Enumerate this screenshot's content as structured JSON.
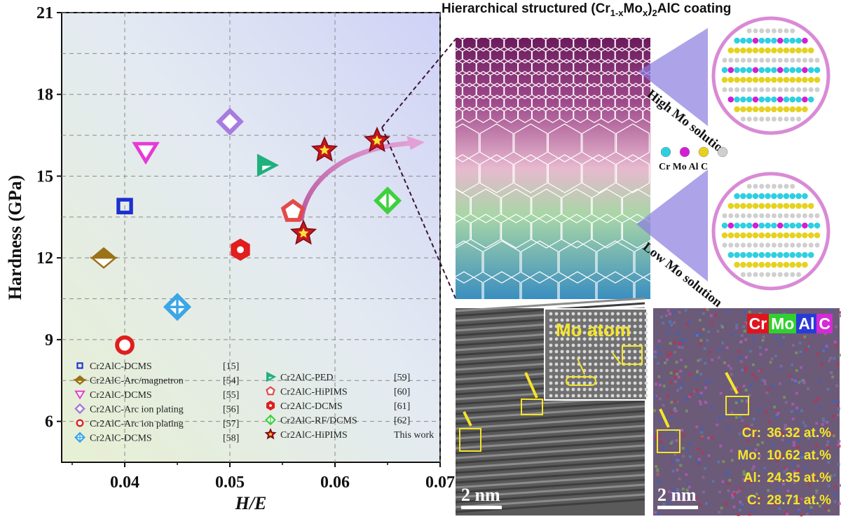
{
  "chart_data": {
    "type": "scatter",
    "xlabel": "H/E",
    "ylabel": "Hardness (GPa)",
    "xlim": [
      0.034,
      0.07
    ],
    "ylim": [
      4.5,
      21
    ],
    "x_ticks": [
      "0.04",
      "0.05",
      "0.06",
      "0.07"
    ],
    "y_ticks": [
      "6",
      "9",
      "12",
      "15",
      "18",
      "21"
    ],
    "grid": true,
    "legend_position": "bottom",
    "series": [
      {
        "name": "Cr2AlC-DCMS",
        "ref": "[15]",
        "marker": "square",
        "color": "#1b2fd1",
        "points": [
          [
            0.04,
            13.9
          ]
        ]
      },
      {
        "name": "Cr2AlC-Arc/magnetron",
        "ref": "[54]",
        "marker": "half-diamond",
        "color": "#9a7218",
        "points": [
          [
            0.038,
            12.0
          ]
        ]
      },
      {
        "name": "Cr2AlC-DCMS",
        "ref": "[55]",
        "marker": "triangle-down",
        "color": "#e63ad6",
        "points": [
          [
            0.042,
            15.9
          ]
        ]
      },
      {
        "name": "Cr2AlC-Arc  ion plating",
        "ref": "[56]",
        "marker": "diamond",
        "color": "#a77be0",
        "points": [
          [
            0.05,
            17.0
          ]
        ]
      },
      {
        "name": "Cr2AlC-Arc  ion plating",
        "ref": "[57]",
        "marker": "circle",
        "color": "#e01e1e",
        "points": [
          [
            0.04,
            8.8
          ]
        ]
      },
      {
        "name": "Cr2AlC-DCMS",
        "ref": "[58]",
        "marker": "crossed-diamond",
        "color": "#3aa6e6",
        "points": [
          [
            0.045,
            10.2
          ]
        ]
      },
      {
        "name": "Cr2AlC-PED",
        "ref": "[59]",
        "marker": "triangle-right",
        "color": "#1fb07e",
        "points": [
          [
            0.0535,
            15.4
          ]
        ]
      },
      {
        "name": "Cr2AlC-HiPIMS",
        "ref": "[60]",
        "marker": "pentagon",
        "color": "#e24a4a",
        "points": [
          [
            0.056,
            13.7
          ]
        ]
      },
      {
        "name": "Cr2AlC-DCMS",
        "ref": "[61]",
        "marker": "hexagon",
        "color": "#e01e1e",
        "points": [
          [
            0.051,
            12.3
          ]
        ]
      },
      {
        "name": "Cr2AlC-RF/DCMS",
        "ref": "[62]",
        "marker": "crossed-diamond-green",
        "color": "#3ed03e",
        "points": [
          [
            0.065,
            14.1
          ]
        ]
      },
      {
        "name": "Cr2AlC-HiPIMS",
        "ref": "This work",
        "marker": "star",
        "color": "#c8161e",
        "points": [
          [
            0.057,
            12.9
          ],
          [
            0.059,
            15.95
          ],
          [
            0.064,
            16.3
          ]
        ]
      }
    ]
  },
  "right_panel": {
    "title_main": "Hierarchical structured (Cr",
    "title_sub1": "1-x",
    "title_mid": "Mo",
    "title_sub2": "x",
    "title_close": ")",
    "title_sub3": "2",
    "title_end": "AlC coating",
    "high_mo_label": "High Mo solution",
    "low_mo_label": "Low Mo solution",
    "atom_labels": "Cr Mo Al C",
    "atom_colors": [
      "#2ed0e0",
      "#d21fd2",
      "#e6d21e",
      "#cfcfcf"
    ]
  },
  "tem": {
    "inset_label": "Mo atom",
    "scale_bar": "2 nm"
  },
  "eds": {
    "legend": [
      {
        "label": "Cr",
        "bg": "#e0141e",
        "fg": "#ffffff"
      },
      {
        "label": "Mo",
        "bg": "#2fd030",
        "fg": "#ffffff"
      },
      {
        "label": "Al",
        "bg": "#2a3ad8",
        "fg": "#ffffff"
      },
      {
        "label": "C",
        "bg": "#d62ad6",
        "fg": "#ffffff"
      }
    ],
    "composition": [
      {
        "element": "Cr:",
        "value": "36.32 at.%"
      },
      {
        "element": "Mo:",
        "value": "10.62 at.%"
      },
      {
        "element": "Al:",
        "value": "24.35 at.%"
      },
      {
        "element": "C:",
        "value": "28.71 at.%"
      }
    ],
    "scale_bar": "2 nm"
  }
}
